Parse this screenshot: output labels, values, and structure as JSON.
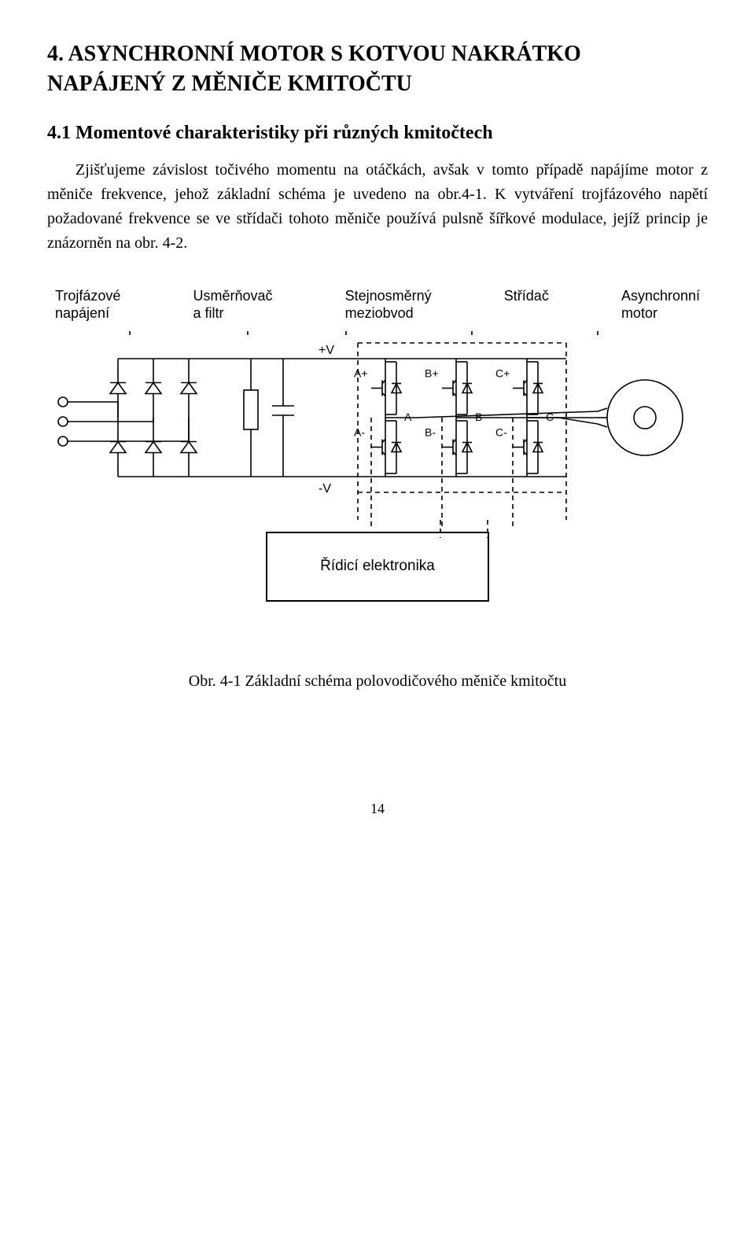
{
  "heading": {
    "line1": "4.  ASYNCHRONNÍ MOTOR S KOTVOU NAKRÁTKO",
    "line2": "NAPÁJENÝ Z MĚNIČE KMITOČTU"
  },
  "subheading": "4.1 Momentové charakteristiky při různých kmitočtech",
  "paragraph": "Zjišťujeme závislost točivého momentu na otáčkách, avšak v tomto případě napájíme motor z měniče frekvence, jehož základní schéma je uvedeno na obr.4-1. K vytváření trojfázového napětí požadované frekvence se ve střídači tohoto měniče používá pulsně šířkové modulace, jejíž princip je znázorněn na obr. 4-2.",
  "labels": {
    "supply": {
      "l1": "Trojfázové",
      "l2": "napájení"
    },
    "rectifier": {
      "l1": "Usměrňovač",
      "l2": "a filtr"
    },
    "dclink": {
      "l1": "Stejnosměrný",
      "l2": "meziobvod"
    },
    "inverter": "Střídač",
    "motor": {
      "l1": "Asynchronní",
      "l2": "motor"
    }
  },
  "diagram": {
    "plusV": "+V",
    "minusV": "-V",
    "switches": {
      "Ap": "A+",
      "Bp": "B+",
      "Cp": "C+",
      "Am": "A-",
      "Bm": "B-",
      "Cm": "C-",
      "A": "A",
      "B": "B",
      "C": "C"
    },
    "stroke": "#000000",
    "thin": 1.6,
    "dash": "6 5"
  },
  "controlbox_label": "Řídicí elektronika",
  "caption": "Obr. 4-1  Základní schéma polovodičového měniče kmitočtu",
  "page_number": "14"
}
